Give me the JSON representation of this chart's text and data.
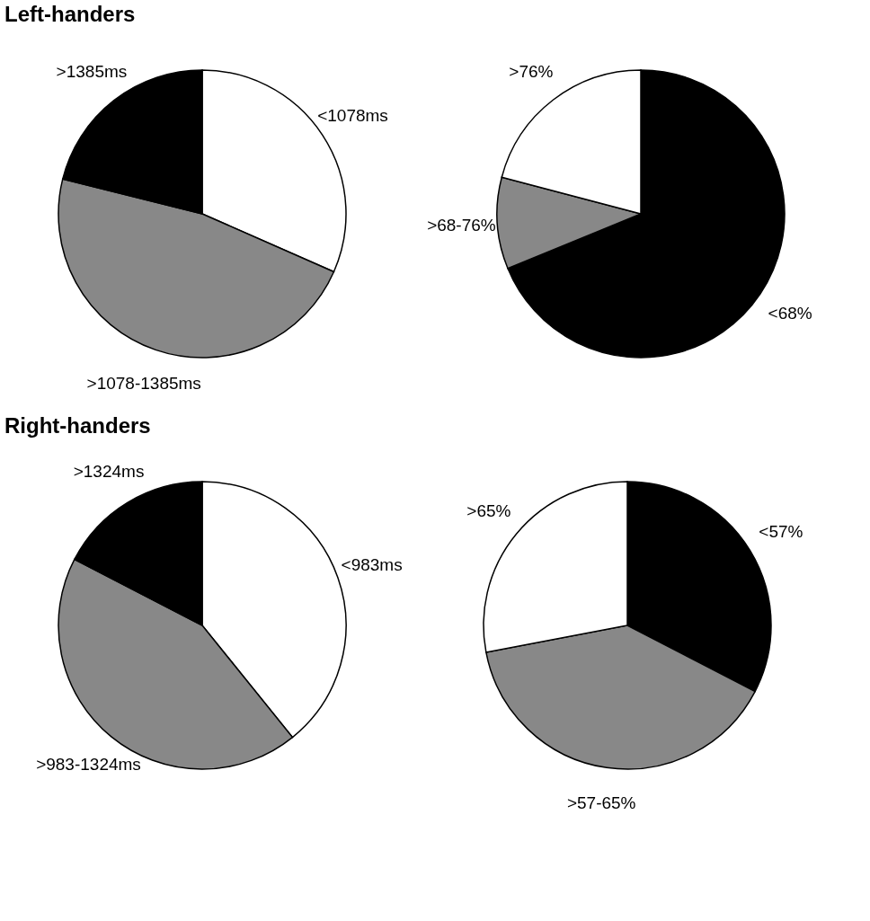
{
  "chart_data": [
    {
      "type": "pie",
      "title": "Left-handers",
      "categories": [
        "<1078ms",
        ">1078-1385ms",
        ">1385ms"
      ],
      "values": [
        31.6,
        47.3,
        21.1
      ],
      "colors": [
        "#ffffff",
        "#888888",
        "#000000"
      ],
      "legend": false
    },
    {
      "type": "pie",
      "categories": [
        "<68%",
        ">68-76%",
        ">76%"
      ],
      "values": [
        68.8,
        10.3,
        20.9
      ],
      "colors": [
        "#000000",
        "#888888",
        "#ffffff"
      ],
      "legend": false
    },
    {
      "type": "pie",
      "title": "Right-handers",
      "categories": [
        "<983ms",
        ">983-1324ms",
        ">1324ms"
      ],
      "values": [
        39.2,
        43.4,
        17.4
      ],
      "colors": [
        "#ffffff",
        "#888888",
        "#000000"
      ],
      "legend": false
    },
    {
      "type": "pie",
      "categories": [
        "<57%",
        ">57-65%",
        ">65%"
      ],
      "values": [
        32.6,
        39.4,
        28.0
      ],
      "colors": [
        "#000000",
        "#888888",
        "#ffffff"
      ],
      "legend": false
    }
  ]
}
